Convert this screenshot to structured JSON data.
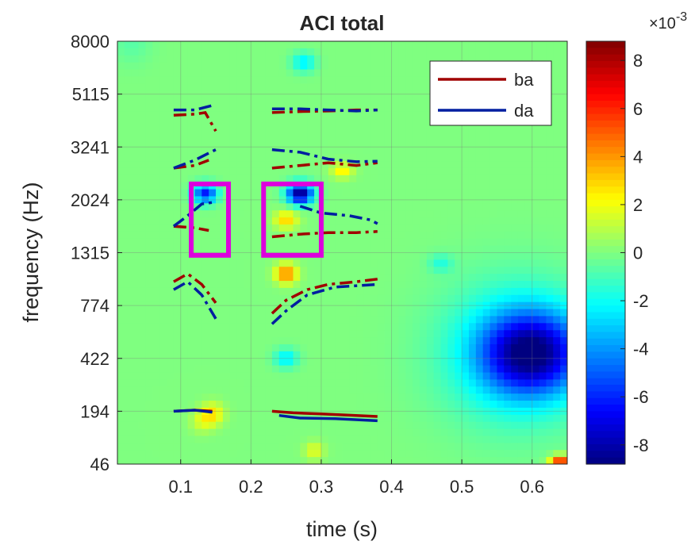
{
  "chart_data": {
    "type": "heatmap",
    "title": "ACI total",
    "xlabel": "time (s)",
    "ylabel": "frequency (Hz)",
    "xlim": [
      0.01,
      0.65
    ],
    "x_ticks": [
      0.1,
      0.2,
      0.3,
      0.4,
      0.5,
      0.6
    ],
    "x_tick_labels": [
      "0.1",
      "0.2",
      "0.3",
      "0.4",
      "0.5",
      "0.6"
    ],
    "y_tick_labels": [
      "46",
      "194",
      "422",
      "774",
      "1315",
      "2024",
      "3241",
      "5115",
      "8000"
    ],
    "ylim_band_index": [
      0,
      8
    ],
    "grid": true,
    "colormap": "jet",
    "colorbar": {
      "min": -0.0088,
      "max": 0.0088,
      "ticks": [
        8,
        6,
        4,
        2,
        0,
        -2,
        -4,
        -6,
        -8
      ],
      "exponent_label": "×10",
      "exponent_value": "-3"
    },
    "heatmap_blobs": [
      {
        "t": 0.6,
        "band": 2.1,
        "value": -0.0072,
        "spread_t": 0.05,
        "spread_band": 0.55
      },
      {
        "t": 0.575,
        "band": 2.1,
        "value": -0.0025,
        "spread_t": 0.075,
        "spread_band": 0.95
      },
      {
        "t": 0.135,
        "band": 5.12,
        "value": -0.0062,
        "spread_t": 0.012,
        "spread_band": 0.13
      },
      {
        "t": 0.27,
        "band": 5.12,
        "value": -0.0088,
        "spread_t": 0.013,
        "spread_band": 0.14
      },
      {
        "t": 0.25,
        "band": 4.62,
        "value": 0.003,
        "spread_t": 0.012,
        "spread_band": 0.12
      },
      {
        "t": 0.25,
        "band": 3.6,
        "value": 0.0045,
        "spread_t": 0.011,
        "spread_band": 0.13
      },
      {
        "t": 0.25,
        "band": 2.0,
        "value": -0.0025,
        "spread_t": 0.012,
        "spread_band": 0.13
      },
      {
        "t": 0.275,
        "band": 7.6,
        "value": -0.0025,
        "spread_t": 0.012,
        "spread_band": 0.13
      },
      {
        "t": 0.47,
        "band": 3.8,
        "value": -0.0015,
        "spread_t": 0.012,
        "spread_band": 0.12
      },
      {
        "t": 0.33,
        "band": 5.55,
        "value": 0.0025,
        "spread_t": 0.011,
        "spread_band": 0.1
      },
      {
        "t": 0.145,
        "band": 0.95,
        "value": 0.0025,
        "spread_t": 0.012,
        "spread_band": 0.15
      },
      {
        "t": 0.13,
        "band": 0.8,
        "value": 0.0013,
        "spread_t": 0.012,
        "spread_band": 0.15
      },
      {
        "t": 0.29,
        "band": 0.25,
        "value": 0.0018,
        "spread_t": 0.01,
        "spread_band": 0.12
      },
      {
        "t": 0.64,
        "band": 0.0,
        "value": 0.0075,
        "spread_t": 0.01,
        "spread_band": 0.1
      },
      {
        "t": 0.03,
        "band": 8.0,
        "value": -0.0007,
        "spread_t": 0.02,
        "spread_band": 0.3
      }
    ],
    "highlight_boxes": [
      {
        "t0": 0.115,
        "t1": 0.168,
        "band0": 3.95,
        "band1": 5.3,
        "color": "#dd00dd"
      },
      {
        "t0": 0.218,
        "t1": 0.3,
        "band0": 3.95,
        "band1": 5.3,
        "color": "#dd00dd"
      }
    ],
    "series": [
      {
        "name": "ba",
        "color": "#a00000",
        "segments": [
          {
            "style": "solid",
            "points": [
              [
                0.09,
                1.0
              ],
              [
                0.12,
                1.02
              ],
              [
                0.145,
                1.0
              ]
            ]
          },
          {
            "style": "dashed",
            "points": [
              [
                0.09,
                3.45
              ],
              [
                0.11,
                3.6
              ],
              [
                0.13,
                3.4
              ],
              [
                0.15,
                3.05
              ]
            ]
          },
          {
            "style": "dashed",
            "points": [
              [
                0.09,
                4.5
              ],
              [
                0.12,
                4.47
              ],
              [
                0.14,
                4.42
              ]
            ]
          },
          {
            "style": "dashed",
            "points": [
              [
                0.09,
                5.6
              ],
              [
                0.12,
                5.65
              ],
              [
                0.14,
                5.75
              ]
            ]
          },
          {
            "style": "dashed",
            "points": [
              [
                0.09,
                6.6
              ],
              [
                0.12,
                6.62
              ],
              [
                0.135,
                6.65
              ],
              [
                0.15,
                6.3
              ]
            ]
          },
          {
            "style": "solid",
            "points": [
              [
                0.23,
                1.0
              ],
              [
                0.26,
                0.97
              ],
              [
                0.3,
                0.95
              ],
              [
                0.38,
                0.9
              ]
            ]
          },
          {
            "style": "dashed",
            "points": [
              [
                0.23,
                2.85
              ],
              [
                0.25,
                3.1
              ],
              [
                0.28,
                3.3
              ],
              [
                0.31,
                3.4
              ],
              [
                0.35,
                3.45
              ],
              [
                0.38,
                3.5
              ]
            ]
          },
          {
            "style": "dashed",
            "points": [
              [
                0.23,
                4.3
              ],
              [
                0.27,
                4.35
              ],
              [
                0.31,
                4.38
              ],
              [
                0.35,
                4.38
              ],
              [
                0.38,
                4.4
              ]
            ]
          },
          {
            "style": "dashed",
            "points": [
              [
                0.23,
                5.6
              ],
              [
                0.27,
                5.65
              ],
              [
                0.31,
                5.7
              ],
              [
                0.35,
                5.65
              ],
              [
                0.38,
                5.7
              ]
            ]
          },
          {
            "style": "dashed",
            "points": [
              [
                0.23,
                6.65
              ],
              [
                0.27,
                6.67
              ],
              [
                0.31,
                6.68
              ],
              [
                0.35,
                6.7
              ],
              [
                0.38,
                6.7
              ]
            ]
          }
        ]
      },
      {
        "name": "da",
        "color": "#001ea0",
        "segments": [
          {
            "style": "solid",
            "points": [
              [
                0.09,
                1.0
              ],
              [
                0.12,
                1.02
              ],
              [
                0.145,
                0.98
              ]
            ]
          },
          {
            "style": "dashed",
            "points": [
              [
                0.09,
                3.3
              ],
              [
                0.11,
                3.45
              ],
              [
                0.13,
                3.2
              ],
              [
                0.15,
                2.75
              ]
            ]
          },
          {
            "style": "dashed",
            "points": [
              [
                0.09,
                4.5
              ],
              [
                0.11,
                4.7
              ],
              [
                0.13,
                4.92
              ],
              [
                0.145,
                4.95
              ]
            ]
          },
          {
            "style": "dashed",
            "points": [
              [
                0.09,
                5.6
              ],
              [
                0.12,
                5.75
              ],
              [
                0.15,
                5.95
              ]
            ]
          },
          {
            "style": "dashed",
            "points": [
              [
                0.09,
                6.7
              ],
              [
                0.12,
                6.7
              ],
              [
                0.15,
                6.8
              ]
            ]
          },
          {
            "style": "solid",
            "points": [
              [
                0.24,
                0.92
              ],
              [
                0.27,
                0.87
              ],
              [
                0.32,
                0.86
              ],
              [
                0.38,
                0.82
              ]
            ]
          },
          {
            "style": "dashed",
            "points": [
              [
                0.23,
                2.65
              ],
              [
                0.25,
                2.9
              ],
              [
                0.28,
                3.2
              ],
              [
                0.32,
                3.35
              ],
              [
                0.38,
                3.4
              ]
            ]
          },
          {
            "style": "dashed",
            "points": [
              [
                0.27,
                4.88
              ],
              [
                0.3,
                4.75
              ],
              [
                0.34,
                4.7
              ],
              [
                0.37,
                4.62
              ],
              [
                0.38,
                4.55
              ]
            ]
          },
          {
            "style": "dashed",
            "points": [
              [
                0.23,
                5.95
              ],
              [
                0.27,
                5.9
              ],
              [
                0.31,
                5.77
              ],
              [
                0.35,
                5.72
              ],
              [
                0.38,
                5.73
              ]
            ]
          },
          {
            "style": "dashed",
            "points": [
              [
                0.23,
                6.72
              ],
              [
                0.27,
                6.72
              ],
              [
                0.31,
                6.7
              ],
              [
                0.35,
                6.68
              ],
              [
                0.38,
                6.7
              ]
            ]
          }
        ]
      }
    ],
    "legend": {
      "position": "top-right",
      "entries": [
        "ba",
        "da"
      ]
    }
  }
}
